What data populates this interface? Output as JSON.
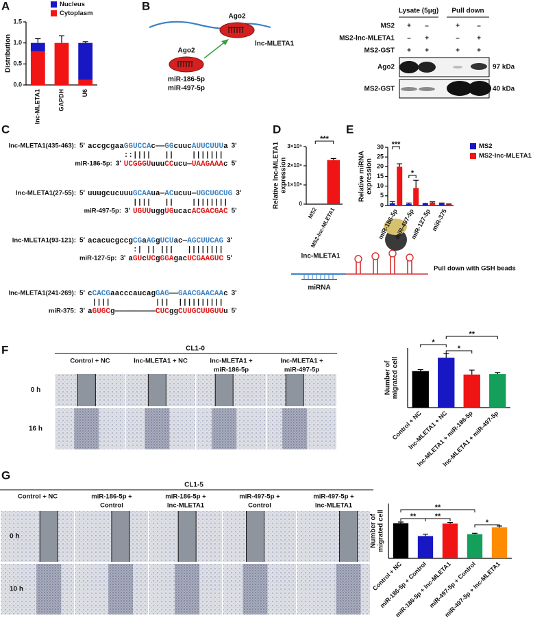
{
  "panel_labels": [
    "A",
    "B",
    "C",
    "D",
    "E",
    "F",
    "G"
  ],
  "chart_data": [
    {
      "type": "bar",
      "stacked": true,
      "categories": [
        "lnc-MLETA1",
        "GAPDH",
        "U6"
      ],
      "ylabel": "Distribution",
      "ylim": [
        0,
        1.5
      ],
      "yticks": [
        {
          "value": 0,
          "label": "0.0"
        },
        {
          "value": 0.5,
          "label": "0.5"
        },
        {
          "value": 1,
          "label": "1.0"
        },
        {
          "value": 1.5,
          "label": "1.5"
        }
      ],
      "legend": "top-right",
      "series": [
        {
          "name": "Nucleus",
          "color": "#1717c4",
          "values": [
            0.2,
            0,
            0.88
          ],
          "errors": [
            0.1,
            0.17,
            0.03
          ]
        },
        {
          "name": "Cytoplasm",
          "color": "#f01414",
          "values": [
            0.8,
            1.0,
            0.12
          ]
        }
      ]
    },
    {
      "type": "bar",
      "categories": [
        "MS2",
        "MS2-lnc-MLETA1"
      ],
      "values": [
        0,
        230000
      ],
      "errors": [
        null,
        8000
      ],
      "color": "#f01414",
      "ylabel_lines": [
        "Relative lnc-MLETA1",
        "expression"
      ],
      "ylim": [
        0,
        300000
      ],
      "yticks": [
        0,
        {
          "value": 100000,
          "label": "1×10⁵"
        },
        {
          "value": 200000,
          "label": "2×10⁵"
        },
        {
          "value": 300000,
          "label": "3×10⁵"
        }
      ],
      "annotations": [
        "***"
      ]
    },
    {
      "type": "bar",
      "categories": [
        "miR-186-5p",
        "miR-497-5p",
        "miR-127-5p",
        "miR-375"
      ],
      "ylabel_lines": [
        "Relative miRNA",
        "expression"
      ],
      "ylim": [
        0,
        30
      ],
      "yticks": [
        0,
        5,
        10,
        15,
        20,
        25,
        30
      ],
      "legend": "right",
      "series": [
        {
          "name": "MS2",
          "color": "#1717c4",
          "values": [
            1.2,
            0.8,
            0.8,
            1.0
          ],
          "errors": [
            0.8,
            0.5,
            0.4,
            0.3
          ]
        },
        {
          "name": "MS2-lnc-MLETA1",
          "color": "#f01414",
          "values": [
            20,
            9,
            1.5,
            0.6
          ],
          "errors": [
            1.5,
            4,
            0.4,
            0.2
          ]
        }
      ],
      "annotations": [
        "***",
        "*"
      ]
    },
    {
      "type": "bar",
      "categories": [
        "Control + NC",
        "lnc-MLETA1 + NC",
        "lnc-MLETA1 + miR-186-5p",
        "lnc-MLETA1 + miR-497-5p"
      ],
      "values": [
        245,
        335,
        222,
        225
      ],
      "errors": [
        10,
        30,
        30,
        10
      ],
      "colors": [
        "#000000",
        "#1717c4",
        "#f01414",
        "#14a05a"
      ],
      "ylabel_lines": [
        "Number of",
        "migrated cell"
      ],
      "ylim": [
        0,
        400
      ],
      "annotations": [
        "*",
        "**",
        "*"
      ]
    },
    {
      "type": "bar",
      "categories": [
        "Control + NC",
        "miR-186-5p + Control",
        "miR-186-5p + lnc-MLETA1",
        "miR-497-5p + Control",
        "miR-497-5p + lnc-MLETA1"
      ],
      "values": [
        288,
        183,
        285,
        198,
        255
      ],
      "errors": [
        10,
        15,
        10,
        8,
        10
      ],
      "colors": [
        "#000000",
        "#1717c4",
        "#f01414",
        "#14a05a",
        "#ff8c00"
      ],
      "ylabel_lines": [
        "Number of",
        "migrated cell"
      ],
      "ylim": [
        0,
        450
      ],
      "annotations": [
        "**",
        "**",
        "**",
        "*"
      ]
    }
  ],
  "diagram_b": {
    "ago2_top": "Ago2",
    "ago2_bottom": "Ago2",
    "rna": "lnc-MLETA1",
    "mirnas": [
      "miR-186-5p",
      "miR-497-5p"
    ]
  },
  "blot": {
    "groups": [
      "Lysate (5μg)",
      "Pull down"
    ],
    "rows": [
      {
        "label": "MS2",
        "signs": [
          "+",
          "–",
          "+",
          "–"
        ]
      },
      {
        "label": "MS2-lnc-MLETA1",
        "signs": [
          "–",
          "+",
          "–",
          "+"
        ]
      },
      {
        "label": "MS2-GST",
        "signs": [
          "+",
          "+",
          "+",
          "+"
        ]
      }
    ],
    "bands": [
      {
        "label": "Ago2",
        "size": "97 kDa"
      },
      {
        "label": "MS2-GST",
        "size": "40 kDa"
      }
    ]
  },
  "alignments": [
    {
      "target_label": "lnc-MLETA1(435-463):",
      "target_ends": [
        "5'",
        "3'"
      ],
      "target": [
        {
          "text": "accgcgaa",
          "color": "#111111"
        },
        {
          "text": "GGUCCA",
          "color": "#3a82c4"
        },
        {
          "text": "c——",
          "color": "#111111"
        },
        {
          "text": "GG",
          "color": "#3a82c4"
        },
        {
          "text": "cuuc",
          "color": "#111111"
        },
        {
          "text": "AUUCUUU",
          "color": "#3a82c4"
        },
        {
          "text": "a",
          "color": "#111111"
        }
      ],
      "pairs": "::||||   ||    |||||||",
      "mirna_label": "miR-186-5p:",
      "mirna_ends": [
        "3'",
        "5'"
      ],
      "mirna": [
        {
          "text": "UCGGGU",
          "color": "#e01818"
        },
        {
          "text": "uuu",
          "color": "#111111"
        },
        {
          "text": "CC",
          "color": "#e01818"
        },
        {
          "text": "ucu—",
          "color": "#111111"
        },
        {
          "text": "UAAGAAA",
          "color": "#e01818"
        },
        {
          "text": "c",
          "color": "#111111"
        }
      ]
    },
    {
      "target_label": "lnc-MLETA1(27-55):",
      "target_ends": [
        "5'",
        "3'"
      ],
      "target": [
        {
          "text": "uuugcucuuu",
          "color": "#111111"
        },
        {
          "text": "GCAA",
          "color": "#3a82c4"
        },
        {
          "text": "ua—",
          "color": "#111111"
        },
        {
          "text": "AC",
          "color": "#3a82c4"
        },
        {
          "text": "ucuu—",
          "color": "#111111"
        },
        {
          "text": "UGCUGCUG",
          "color": "#3a82c4"
        }
      ],
      "pairs": "||||   ||    ||||||||",
      "mirna_label": "miR-497-5p:",
      "mirna_ends": [
        "3'",
        "5'"
      ],
      "mirna": [
        {
          "text": "UGUU",
          "color": "#e01818"
        },
        {
          "text": "ugg",
          "color": "#111111"
        },
        {
          "text": "UG",
          "color": "#e01818"
        },
        {
          "text": "ucac",
          "color": "#111111"
        },
        {
          "text": "ACGACGAC",
          "color": "#e01818"
        }
      ]
    },
    {
      "target_label": "lnc-MLETA1(93-121):",
      "target_ends": [
        "5'",
        "3'"
      ],
      "target": [
        {
          "text": "acacucgccg",
          "color": "#111111"
        },
        {
          "text": "CG",
          "color": "#3a82c4"
        },
        {
          "text": "a",
          "color": "#111111"
        },
        {
          "text": "AG",
          "color": "#3a82c4"
        },
        {
          "text": "g",
          "color": "#111111"
        },
        {
          "text": "UCU",
          "color": "#3a82c4"
        },
        {
          "text": "ac—",
          "color": "#111111"
        },
        {
          "text": "AGCUUCAG",
          "color": "#3a82c4"
        }
      ],
      "pairs": " :| || |||   ||||||||",
      "mirna_label": "miR-127-5p:",
      "mirna_ends": [
        "3'",
        "5'"
      ],
      "mirna": [
        {
          "text": "a",
          "color": "#111111"
        },
        {
          "text": "GU",
          "color": "#e01818"
        },
        {
          "text": "c",
          "color": "#111111"
        },
        {
          "text": "UC",
          "color": "#e01818"
        },
        {
          "text": "g",
          "color": "#111111"
        },
        {
          "text": "GGA",
          "color": "#e01818"
        },
        {
          "text": "gac",
          "color": "#111111"
        },
        {
          "text": "UCGAAGUC",
          "color": "#e01818"
        }
      ]
    },
    {
      "target_label": "lnc-MLETA1(241-269):",
      "target_ends": [
        "5'",
        "3'"
      ],
      "target": [
        {
          "text": "c",
          "color": "#111111"
        },
        {
          "text": "CACG",
          "color": "#3a82c4"
        },
        {
          "text": "aacccaucag",
          "color": "#111111"
        },
        {
          "text": "GAG",
          "color": "#3a82c4"
        },
        {
          "text": "——",
          "color": "#111111"
        },
        {
          "text": "GAACGAACAA",
          "color": "#3a82c4"
        },
        {
          "text": "c",
          "color": "#111111"
        }
      ],
      "pairs": " ||||          |||  ||||||||||",
      "mirna_label": "miR-375:",
      "mirna_ends": [
        "3'",
        "5'"
      ],
      "mirna": [
        {
          "text": "a",
          "color": "#111111"
        },
        {
          "text": "GUGC",
          "color": "#e01818"
        },
        {
          "text": "g—————————",
          "color": "#111111"
        },
        {
          "text": "CUC",
          "color": "#e01818"
        },
        {
          "text": "gg",
          "color": "#111111"
        },
        {
          "text": "CUUGCUUGUU",
          "color": "#e01818"
        },
        {
          "text": "u",
          "color": "#111111"
        }
      ]
    }
  ],
  "pulldown": {
    "rna": "lnc-MLETA1",
    "mirna": "miRNA",
    "caption": "Pull down with GSH beads"
  },
  "scratch_f": {
    "title": "CL1-0",
    "columns": [
      [
        "Control + NC"
      ],
      [
        "lnc-MLETA1 + NC"
      ],
      [
        "lnc-MLETA1 +",
        "miR-186-5p"
      ],
      [
        "lnc-MLETA1 +",
        "miR-497-5p"
      ]
    ],
    "rows": [
      "0 h",
      "16 h"
    ]
  },
  "scratch_g": {
    "title": "CL1-5",
    "columns": [
      [
        "Control + NC"
      ],
      [
        "miR-186-5p +",
        "Control"
      ],
      [
        "miR-186-5p +",
        "lnc-MLETA1"
      ],
      [
        "miR-497-5p +",
        "Control"
      ],
      [
        "miR-497-5p +",
        "lnc-MLETA1"
      ]
    ],
    "rows": [
      "0 h",
      "10 h"
    ]
  }
}
